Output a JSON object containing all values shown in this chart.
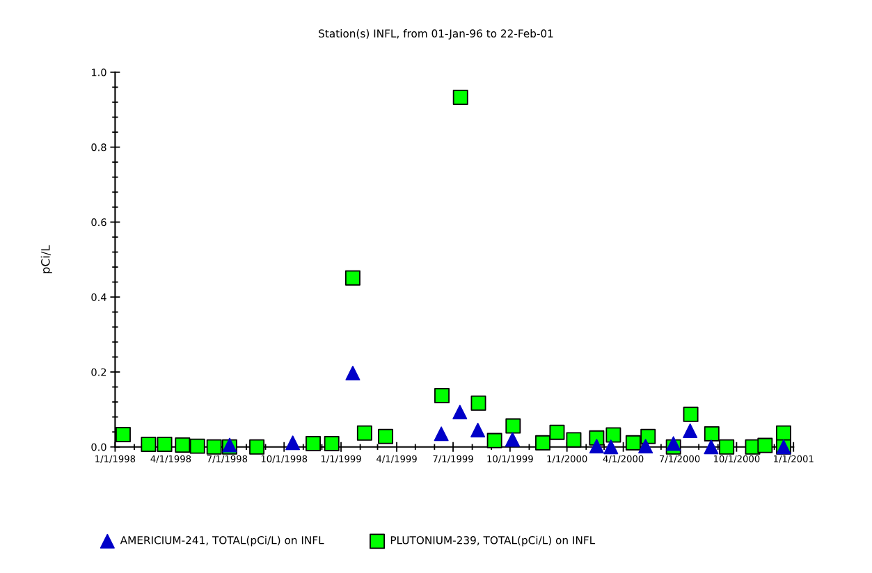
{
  "chart_data": {
    "type": "scatter",
    "title": "Station(s) INFL, from 01-Jan-96 to 22-Feb-01",
    "ylabel": "pCi/L",
    "xlim": [
      "1998-01-01",
      "2001-01-01"
    ],
    "xticks": [
      {
        "value": "1998-01-01",
        "label": "1/1/1998"
      },
      {
        "value": "1998-02-01",
        "label": null
      },
      {
        "value": "1998-03-01",
        "label": null
      },
      {
        "value": "1998-04-01",
        "label": "4/1/1998"
      },
      {
        "value": "1998-05-01",
        "label": null
      },
      {
        "value": "1998-06-01",
        "label": null
      },
      {
        "value": "1998-07-01",
        "label": "7/1/1998"
      },
      {
        "value": "1998-08-01",
        "label": null
      },
      {
        "value": "1998-09-01",
        "label": null
      },
      {
        "value": "1998-10-01",
        "label": "10/1/1998"
      },
      {
        "value": "1998-11-01",
        "label": null
      },
      {
        "value": "1998-12-01",
        "label": null
      },
      {
        "value": "1999-01-01",
        "label": "1/1/1999"
      },
      {
        "value": "1999-02-01",
        "label": null
      },
      {
        "value": "1999-03-01",
        "label": null
      },
      {
        "value": "1999-04-01",
        "label": "4/1/1999"
      },
      {
        "value": "1999-05-01",
        "label": null
      },
      {
        "value": "1999-06-01",
        "label": null
      },
      {
        "value": "1999-07-01",
        "label": "7/1/1999"
      },
      {
        "value": "1999-08-01",
        "label": null
      },
      {
        "value": "1999-09-01",
        "label": null
      },
      {
        "value": "1999-10-01",
        "label": "10/1/1999"
      },
      {
        "value": "1999-11-01",
        "label": null
      },
      {
        "value": "1999-12-01",
        "label": null
      },
      {
        "value": "2000-01-01",
        "label": "1/1/2000"
      },
      {
        "value": "2000-02-01",
        "label": null
      },
      {
        "value": "2000-03-01",
        "label": null
      },
      {
        "value": "2000-04-01",
        "label": "4/1/2000"
      },
      {
        "value": "2000-05-01",
        "label": null
      },
      {
        "value": "2000-06-01",
        "label": null
      },
      {
        "value": "2000-07-01",
        "label": "7/1/2000"
      },
      {
        "value": "2000-08-01",
        "label": null
      },
      {
        "value": "2000-09-01",
        "label": null
      },
      {
        "value": "2000-10-01",
        "label": "10/1/2000"
      },
      {
        "value": "2000-11-01",
        "label": null
      },
      {
        "value": "2000-12-01",
        "label": null
      },
      {
        "value": "2001-01-01",
        "label": "1/1/2001"
      }
    ],
    "ylim": [
      0,
      1.0
    ],
    "yticks": [
      {
        "value": 0,
        "label": "0.0"
      },
      {
        "value": 0.04,
        "label": null
      },
      {
        "value": 0.08,
        "label": null
      },
      {
        "value": 0.12,
        "label": null
      },
      {
        "value": 0.16,
        "label": null
      },
      {
        "value": 0.2,
        "label": "0.2"
      },
      {
        "value": 0.24,
        "label": null
      },
      {
        "value": 0.28,
        "label": null
      },
      {
        "value": 0.32,
        "label": null
      },
      {
        "value": 0.36,
        "label": null
      },
      {
        "value": 0.4,
        "label": "0.4"
      },
      {
        "value": 0.44,
        "label": null
      },
      {
        "value": 0.48,
        "label": null
      },
      {
        "value": 0.52,
        "label": null
      },
      {
        "value": 0.56,
        "label": null
      },
      {
        "value": 0.6,
        "label": "0.6"
      },
      {
        "value": 0.64,
        "label": null
      },
      {
        "value": 0.68,
        "label": null
      },
      {
        "value": 0.72,
        "label": null
      },
      {
        "value": 0.76,
        "label": null
      },
      {
        "value": 0.8,
        "label": "0.8"
      },
      {
        "value": 0.84,
        "label": null
      },
      {
        "value": 0.88,
        "label": null
      },
      {
        "value": 0.92,
        "label": null
      },
      {
        "value": 0.96,
        "label": null
      },
      {
        "value": 1.0,
        "label": "1.0"
      }
    ],
    "grid": false,
    "legend": "bottom left",
    "series": [
      {
        "name": "AMERICIUM-241, TOTAL(pCi/L) on INFL",
        "color": "#0000c8",
        "marker": "triangle",
        "x": [
          "1998-07-05",
          "1998-10-15",
          "1999-01-20",
          "1999-06-12",
          "1999-07-12",
          "1999-08-10",
          "1999-10-05",
          "2000-02-18",
          "2000-03-12",
          "2000-05-07",
          "2000-06-21",
          "2000-07-18",
          "2000-08-21",
          "2000-12-16"
        ],
        "values": [
          0.005,
          0.011,
          0.197,
          0.035,
          0.093,
          0.045,
          0.02,
          0.002,
          0.0,
          0.002,
          0.009,
          0.043,
          0.0,
          0.0
        ]
      },
      {
        "name": "PLUTONIUM-239, TOTAL(pCi/L) on INFL",
        "color": "#00ff00",
        "marker": "square",
        "x": [
          "1998-01-14",
          "1998-02-24",
          "1998-03-22",
          "1998-04-20",
          "1998-05-14",
          "1998-06-10",
          "1998-07-05",
          "1998-08-18",
          "1998-11-17",
          "1998-12-17",
          "1999-01-20",
          "1999-02-08",
          "1999-03-14",
          "1999-06-13",
          "1999-07-13",
          "1999-08-11",
          "1999-09-06",
          "1999-10-06",
          "1999-11-23",
          "1999-12-16",
          "2000-01-12",
          "2000-02-18",
          "2000-03-16",
          "2000-04-17",
          "2000-05-11",
          "2000-06-21",
          "2000-07-19",
          "2000-08-22",
          "2000-09-15",
          "2000-10-27",
          "2000-11-16",
          "2000-12-16",
          "2000-12-16"
        ],
        "values": [
          0.033,
          0.007,
          0.007,
          0.005,
          0.002,
          0.0,
          0.0,
          0.0,
          0.009,
          0.009,
          0.451,
          0.037,
          0.028,
          0.137,
          0.933,
          0.117,
          0.017,
          0.056,
          0.011,
          0.039,
          0.019,
          0.024,
          0.032,
          0.011,
          0.028,
          0.0,
          0.087,
          0.035,
          0.0,
          0.0,
          0.004,
          0.037,
          0.0
        ]
      }
    ]
  }
}
